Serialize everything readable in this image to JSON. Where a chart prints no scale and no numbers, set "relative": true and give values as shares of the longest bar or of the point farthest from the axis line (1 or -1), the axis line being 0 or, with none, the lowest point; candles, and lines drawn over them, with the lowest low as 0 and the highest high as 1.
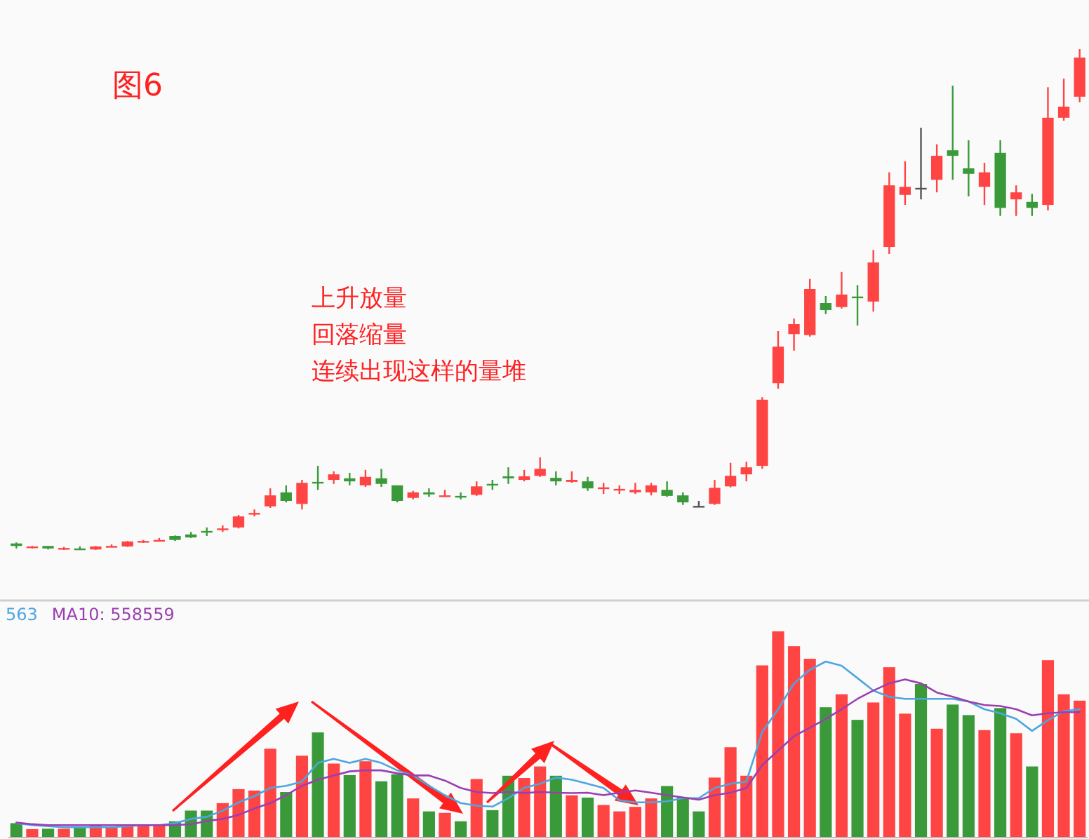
{
  "chart_data": [
    {
      "type": "candlestick",
      "title": "图6",
      "annotations": [
        "上升放量",
        "回落缩量",
        "连续出现这样的量堆"
      ],
      "relative": true,
      "categories": [
        null,
        null,
        null,
        null,
        null,
        null,
        null,
        null,
        null,
        null,
        null,
        null,
        null,
        null,
        null,
        null,
        null,
        null,
        null,
        null,
        null,
        null,
        null,
        null,
        null,
        null,
        null,
        null,
        null,
        null,
        null,
        null,
        null,
        null,
        null,
        null,
        null,
        null,
        null,
        null,
        null,
        null,
        null,
        null,
        null,
        null,
        null,
        null,
        null,
        null,
        null,
        null,
        null,
        null,
        null,
        null,
        null,
        null,
        null,
        null,
        null,
        null,
        null,
        null,
        null,
        null,
        null,
        null
      ],
      "ohlc": [
        [
          0.013,
          0.015,
          0.003,
          0.008
        ],
        [
          0.004,
          0.008,
          0.003,
          0.007
        ],
        [
          0.008,
          0.008,
          0.001,
          0.003
        ],
        [
          0.002,
          0.006,
          0,
          0.004
        ],
        [
          0.003,
          0.007,
          0,
          0.002
        ],
        [
          0.001,
          0.008,
          0,
          0.007
        ],
        [
          0.007,
          0.011,
          0.006,
          0.008
        ],
        [
          0.007,
          0.018,
          0.006,
          0.017
        ],
        [
          0.016,
          0.02,
          0.014,
          0.018
        ],
        [
          0.018,
          0.024,
          0.017,
          0.02
        ],
        [
          0.028,
          0.029,
          0.018,
          0.02
        ],
        [
          0.031,
          0.036,
          0.024,
          0.025
        ],
        [
          0.038,
          0.045,
          0.028,
          0.035
        ],
        [
          0.041,
          0.049,
          0.036,
          0.043
        ],
        [
          0.045,
          0.07,
          0.043,
          0.067
        ],
        [
          0.071,
          0.081,
          0.067,
          0.074
        ],
        [
          0.087,
          0.123,
          0.084,
          0.109
        ],
        [
          0.115,
          0.129,
          0.095,
          0.098
        ],
        [
          0.092,
          0.14,
          0.081,
          0.134
        ],
        [
          0.136,
          0.168,
          0.12,
          0.133
        ],
        [
          0.14,
          0.157,
          0.132,
          0.151
        ],
        [
          0.143,
          0.154,
          0.129,
          0.137
        ],
        [
          0.129,
          0.16,
          0.126,
          0.146
        ],
        [
          0.143,
          0.162,
          0.126,
          0.132
        ],
        [
          0.129,
          0.129,
          0.095,
          0.098
        ],
        [
          0.104,
          0.118,
          0.101,
          0.115
        ],
        [
          0.115,
          0.123,
          0.106,
          0.111
        ],
        [
          0.108,
          0.12,
          0.106,
          0.109
        ],
        [
          0.108,
          0.115,
          0.101,
          0.105
        ],
        [
          0.11,
          0.137,
          0.108,
          0.127
        ],
        [
          0.132,
          0.14,
          0.12,
          0.129
        ],
        [
          0.147,
          0.165,
          0.132,
          0.143
        ],
        [
          0.14,
          0.16,
          0.137,
          0.147
        ],
        [
          0.148,
          0.185,
          0.146,
          0.162
        ],
        [
          0.144,
          0.157,
          0.129,
          0.137
        ],
        [
          0.136,
          0.157,
          0.134,
          0.14
        ],
        [
          0.137,
          0.146,
          0.118,
          0.123
        ],
        [
          0.122,
          0.134,
          0.112,
          0.125
        ],
        [
          0.119,
          0.129,
          0.112,
          0.122
        ],
        [
          0.115,
          0.134,
          0.112,
          0.12
        ],
        [
          0.115,
          0.134,
          0.109,
          0.129
        ],
        [
          0.12,
          0.137,
          0.106,
          0.108
        ],
        [
          0.109,
          0.115,
          0.09,
          0.095
        ],
        [
          0.088,
          0.098,
          0.087,
          0.088
        ],
        [
          0.092,
          0.14,
          0.09,
          0.124
        ],
        [
          0.127,
          0.174,
          0.125,
          0.148
        ],
        [
          0.151,
          0.176,
          0.137,
          0.165
        ],
        [
          0.168,
          0.305,
          0.162,
          0.3
        ],
        [
          0.333,
          0.437,
          0.322,
          0.406
        ],
        [
          0.431,
          0.462,
          0.398,
          0.451
        ],
        [
          0.429,
          0.541,
          0.426,
          0.521
        ],
        [
          0.493,
          0.507,
          0.471,
          0.479
        ],
        [
          0.485,
          0.555,
          0.482,
          0.51
        ],
        [
          0.506,
          0.529,
          0.448,
          0.503
        ],
        [
          0.496,
          0.599,
          0.476,
          0.574
        ],
        [
          0.605,
          0.754,
          0.591,
          0.728
        ],
        [
          0.709,
          0.776,
          0.689,
          0.725
        ],
        [
          0.723,
          0.843,
          0.7,
          0.723
        ],
        [
          0.739,
          0.81,
          0.714,
          0.787
        ],
        [
          0.798,
          0.927,
          0.739,
          0.787
        ],
        [
          0.762,
          0.818,
          0.706,
          0.751
        ],
        [
          0.725,
          0.773,
          0.689,
          0.754
        ],
        [
          0.793,
          0.818,
          0.667,
          0.683
        ],
        [
          0.7,
          0.728,
          0.667,
          0.714
        ],
        [
          0.695,
          0.711,
          0.667,
          0.683
        ],
        [
          0.689,
          0.924,
          0.678,
          0.863
        ],
        [
          0.863,
          0.941,
          0.857,
          0.885
        ],
        [
          0.905,
          1,
          0.894,
          0.983
        ]
      ],
      "colors": [
        "#3a9a3a",
        "#ff4444",
        "#3a9a3a",
        "#ff4444",
        "#3a9a3a",
        "#ff4444",
        "#ff4444",
        "#ff4444",
        "#ff4444",
        "#ff4444",
        "#3a9a3a",
        "#3a9a3a",
        "#3a9a3a",
        "#ff4444",
        "#ff4444",
        "#ff4444",
        "#ff4444",
        "#3a9a3a",
        "#ff4444",
        "#3a9a3a",
        "#ff4444",
        "#3a9a3a",
        "#ff4444",
        "#3a9a3a",
        "#3a9a3a",
        "#ff4444",
        "#3a9a3a",
        "#ff4444",
        "#3a9a3a",
        "#ff4444",
        "#3a9a3a",
        "#3a9a3a",
        "#ff4444",
        "#ff4444",
        "#3a9a3a",
        "#ff4444",
        "#3a9a3a",
        "#ff4444",
        "#ff4444",
        "#ff4444",
        "#ff4444",
        "#3a9a3a",
        "#3a9a3a",
        "#555555",
        "#ff4444",
        "#ff4444",
        "#ff4444",
        "#ff4444",
        "#ff4444",
        "#ff4444",
        "#ff4444",
        "#3a9a3a",
        "#ff4444",
        "#3a9a3a",
        "#ff4444",
        "#ff4444",
        "#ff4444",
        "#555555",
        "#ff4444",
        "#3a9a3a",
        "#3a9a3a",
        "#ff4444",
        "#3a9a3a",
        "#ff4444",
        "#3a9a3a",
        "#ff4444",
        "#ff4444",
        "#ff4444"
      ]
    },
    {
      "type": "line",
      "relative": true,
      "legend": "top left",
      "categories": [
        null,
        null,
        null,
        null,
        null,
        null,
        null,
        null,
        null,
        null,
        null,
        null,
        null,
        null,
        null,
        null,
        null,
        null,
        null,
        null,
        null,
        null,
        null,
        null,
        null,
        null,
        null,
        null,
        null,
        null,
        null,
        null,
        null,
        null,
        null,
        null,
        null,
        null,
        null,
        null,
        null,
        null,
        null,
        null,
        null,
        null,
        null,
        null,
        null,
        null,
        null,
        null,
        null,
        null,
        null,
        null,
        null,
        null,
        null,
        null,
        null,
        null,
        null,
        null,
        null,
        null,
        null,
        null
      ],
      "series": [
        {
          "name": "563",
          "color": "#4da6e0",
          "values": [
            0.082,
            0.071,
            0.065,
            0.059,
            0.059,
            0.059,
            0.059,
            0.065,
            0.071,
            0.071,
            0.082,
            0.106,
            0.118,
            0.153,
            0.2,
            0.235,
            0.282,
            0.294,
            0.318,
            0.424,
            0.447,
            0.424,
            0.447,
            0.424,
            0.382,
            0.353,
            0.294,
            0.241,
            0.196,
            0.181,
            0.176,
            0.224,
            0.282,
            0.306,
            0.341,
            0.329,
            0.306,
            0.282,
            0.212,
            0.2,
            0.2,
            0.206,
            0.224,
            0.224,
            0.282,
            0.306,
            0.318,
            0.6,
            0.729,
            0.876,
            0.953,
            1,
            0.976,
            0.906,
            0.835,
            0.8,
            0.788,
            0.788,
            0.788,
            0.788,
            0.773,
            0.729,
            0.706,
            0.674,
            0.606,
            0.667,
            0.718,
            0.729
          ]
        },
        {
          "name": "MA10: 558559",
          "color": "#9b3fb0",
          "values": [
            0.085,
            0.076,
            0.071,
            0.071,
            0.071,
            0.071,
            0.071,
            0.071,
            0.071,
            0.071,
            0.071,
            0.076,
            0.094,
            0.106,
            0.129,
            0.165,
            0.196,
            0.241,
            0.294,
            0.329,
            0.353,
            0.376,
            0.382,
            0.382,
            0.365,
            0.353,
            0.353,
            0.324,
            0.282,
            0.259,
            0.253,
            0.259,
            0.253,
            0.259,
            0.255,
            0.253,
            0.255,
            0.241,
            0.255,
            0.268,
            0.255,
            0.241,
            0.228,
            0.215,
            0.241,
            0.255,
            0.282,
            0.412,
            0.494,
            0.576,
            0.624,
            0.674,
            0.729,
            0.788,
            0.835,
            0.876,
            0.898,
            0.876,
            0.824,
            0.8,
            0.773,
            0.753,
            0.747,
            0.729,
            0.694,
            0.706,
            0.712,
            0.712
          ]
        }
      ]
    },
    {
      "type": "bar",
      "relative": true,
      "categories": [
        null,
        null,
        null,
        null,
        null,
        null,
        null,
        null,
        null,
        null,
        null,
        null,
        null,
        null,
        null,
        null,
        null,
        null,
        null,
        null,
        null,
        null,
        null,
        null,
        null,
        null,
        null,
        null,
        null,
        null,
        null,
        null,
        null,
        null,
        null,
        null,
        null,
        null,
        null,
        null,
        null,
        null,
        null,
        null,
        null,
        null,
        null,
        null,
        null,
        null,
        null,
        null,
        null,
        null,
        null,
        null,
        null,
        null,
        null,
        null,
        null,
        null,
        null,
        null,
        null,
        null,
        null,
        null
      ],
      "series": [
        {
          "type": "bar",
          "values": [
            0.07,
            0.041,
            0.043,
            0.043,
            0.047,
            0.059,
            0.052,
            0.063,
            0.059,
            0.063,
            0.079,
            0.131,
            0.131,
            0.167,
            0.235,
            0.228,
            0.431,
            0.221,
            0.397,
            0.51,
            0.359,
            0.303,
            0.37,
            0.273,
            0.307,
            0.19,
            0.127,
            0.12,
            0.079,
            0.284,
            0.133,
            0.3,
            0.289,
            0.345,
            0.3,
            0.205,
            0.194,
            0.158,
            0.127,
            0.149,
            0.19,
            0.25,
            0.194,
            0.127,
            0.291,
            0.438,
            0.3,
            0.835,
            1,
            0.928,
            0.867,
            0.632,
            0.695,
            0.571,
            0.655,
            0.826,
            0.601,
            0.745,
            0.528,
            0.645,
            0.594,
            0.521,
            0.628,
            0.506,
            0.345,
            0.86,
            0.695,
            0.664
          ],
          "colors": [
            "#3a9a3a",
            "#ff4444",
            "#3a9a3a",
            "#ff4444",
            "#3a9a3a",
            "#ff4444",
            "#ff4444",
            "#ff4444",
            "#ff4444",
            "#ff4444",
            "#3a9a3a",
            "#3a9a3a",
            "#3a9a3a",
            "#ff4444",
            "#ff4444",
            "#ff4444",
            "#ff4444",
            "#3a9a3a",
            "#ff4444",
            "#3a9a3a",
            "#ff4444",
            "#3a9a3a",
            "#ff4444",
            "#3a9a3a",
            "#3a9a3a",
            "#ff4444",
            "#3a9a3a",
            "#ff4444",
            "#3a9a3a",
            "#ff4444",
            "#3a9a3a",
            "#3a9a3a",
            "#ff4444",
            "#ff4444",
            "#3a9a3a",
            "#ff4444",
            "#3a9a3a",
            "#ff4444",
            "#ff4444",
            "#ff4444",
            "#ff4444",
            "#3a9a3a",
            "#3a9a3a",
            "#3a9a3a",
            "#ff4444",
            "#ff4444",
            "#ff4444",
            "#ff4444",
            "#ff4444",
            "#ff4444",
            "#ff4444",
            "#3a9a3a",
            "#ff4444",
            "#3a9a3a",
            "#ff4444",
            "#ff4444",
            "#ff4444",
            "#3a9a3a",
            "#ff4444",
            "#3a9a3a",
            "#3a9a3a",
            "#ff4444",
            "#3a9a3a",
            "#ff4444",
            "#3a9a3a",
            "#ff4444",
            "#ff4444",
            "#ff4444"
          ]
        }
      ]
    }
  ]
}
